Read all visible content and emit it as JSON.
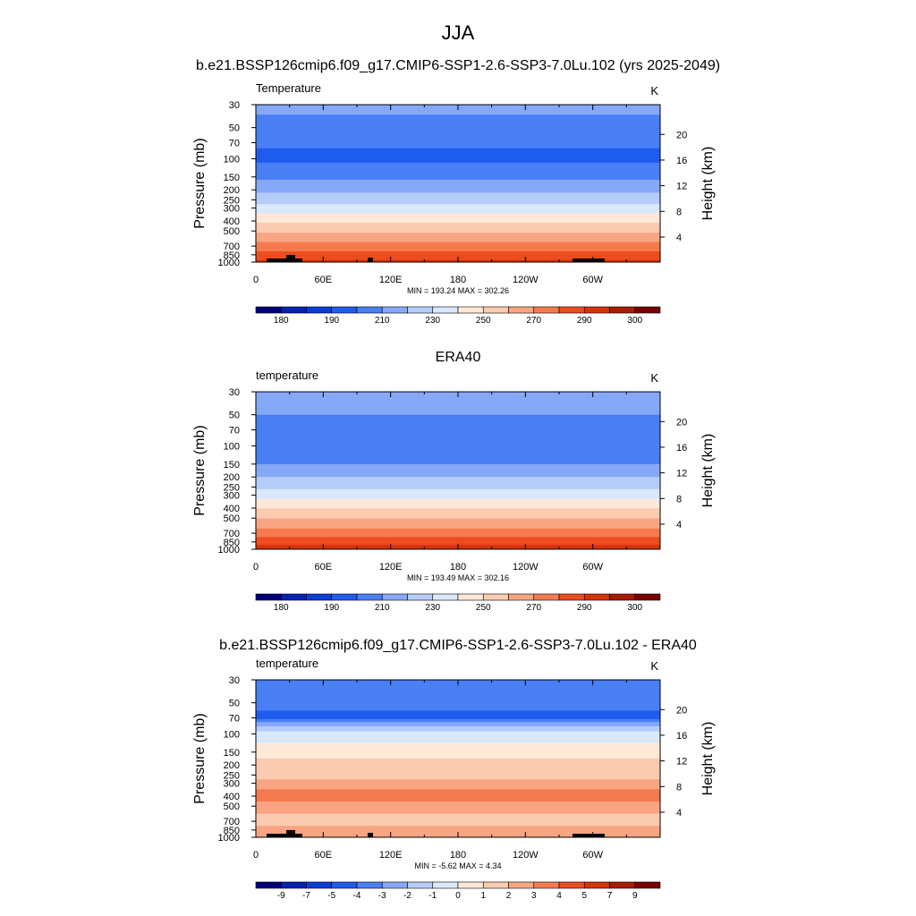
{
  "figure": {
    "title": "JJA",
    "y_left_label": "Pressure (mb)",
    "y_right_label": "Height (km)",
    "pressure_ticks": [
      30,
      50,
      70,
      100,
      150,
      200,
      250,
      300,
      400,
      500,
      700,
      850,
      1000
    ],
    "height_ticks": [
      4,
      8,
      12,
      16,
      20
    ],
    "lon_tick_labels": [
      "0",
      "60E",
      "120E",
      "180",
      "120W",
      "60W"
    ]
  },
  "chart_data": [
    {
      "type": "heatmap",
      "title": "b.e21.BSSP126cmip6.f09_g17.CMIP6-SSP1-2.6-SSP3-7.0Lu.102 (yrs 2025-2049)",
      "left_label": "Temperature",
      "units": "K",
      "min": 193.24,
      "max": 302.26,
      "stats_text": "MIN = 193.24  MAX = 302.26",
      "colorbar_labels": [
        "180",
        "190",
        "210",
        "230",
        "250",
        "270",
        "290",
        "300"
      ],
      "ylim_pressure_mb": [
        1000,
        30
      ],
      "xlim_lon_deg": [
        0,
        360
      ],
      "profile_K": [
        {
          "p": 30,
          "t": 213
        },
        {
          "p": 50,
          "t": 206
        },
        {
          "p": 70,
          "t": 201
        },
        {
          "p": 100,
          "t": 198
        },
        {
          "p": 150,
          "t": 208
        },
        {
          "p": 200,
          "t": 218
        },
        {
          "p": 250,
          "t": 226
        },
        {
          "p": 300,
          "t": 234
        },
        {
          "p": 400,
          "t": 248
        },
        {
          "p": 500,
          "t": 258
        },
        {
          "p": 700,
          "t": 274
        },
        {
          "p": 850,
          "t": 284
        },
        {
          "p": 1000,
          "t": 293
        }
      ]
    },
    {
      "type": "heatmap",
      "title": "ERA40",
      "left_label": "temperature",
      "units": "K",
      "min": 193.49,
      "max": 302.16,
      "stats_text": "MIN = 193.49  MAX = 302.16",
      "colorbar_labels": [
        "180",
        "190",
        "210",
        "230",
        "250",
        "270",
        "290",
        "300"
      ],
      "ylim_pressure_mb": [
        1000,
        30
      ],
      "xlim_lon_deg": [
        0,
        360
      ],
      "profile_K": [
        {
          "p": 30,
          "t": 214
        },
        {
          "p": 50,
          "t": 210
        },
        {
          "p": 70,
          "t": 205
        },
        {
          "p": 100,
          "t": 200
        },
        {
          "p": 150,
          "t": 210
        },
        {
          "p": 200,
          "t": 220
        },
        {
          "p": 250,
          "t": 228
        },
        {
          "p": 300,
          "t": 236
        },
        {
          "p": 400,
          "t": 250
        },
        {
          "p": 500,
          "t": 260
        },
        {
          "p": 700,
          "t": 275
        },
        {
          "p": 850,
          "t": 286
        },
        {
          "p": 1000,
          "t": 295
        }
      ]
    },
    {
      "type": "heatmap",
      "title": "b.e21.BSSP126cmip6.f09_g17.CMIP6-SSP1-2.6-SSP3-7.0Lu.102 - ERA40",
      "left_label": "temperature",
      "units": "K",
      "min": -5.62,
      "max": 4.34,
      "stats_text": "MIN =  -5.62  MAX =   4.34",
      "colorbar_labels": [
        "-9",
        "-7",
        "-5",
        "-4",
        "-3",
        "-2",
        "-1",
        "0",
        "1",
        "2",
        "3",
        "4",
        "5",
        "7",
        "9"
      ],
      "ylim_pressure_mb": [
        1000,
        30
      ],
      "xlim_lon_deg": [
        0,
        360
      ],
      "profile_K": [
        {
          "p": 30,
          "t": -3.5
        },
        {
          "p": 50,
          "t": -3.5
        },
        {
          "p": 70,
          "t": -4.5
        },
        {
          "p": 80,
          "t": -2.5
        },
        {
          "p": 100,
          "t": -0.5
        },
        {
          "p": 150,
          "t": 0.5
        },
        {
          "p": 200,
          "t": 1.5
        },
        {
          "p": 250,
          "t": 1.5
        },
        {
          "p": 300,
          "t": 2.5
        },
        {
          "p": 400,
          "t": 3.5
        },
        {
          "p": 500,
          "t": 2.5
        },
        {
          "p": 700,
          "t": 1.5
        },
        {
          "p": 850,
          "t": 2.5
        },
        {
          "p": 1000,
          "t": 2.5
        }
      ]
    }
  ],
  "colors": {
    "abs_levels": [
      180,
      185,
      190,
      200,
      210,
      220,
      230,
      240,
      250,
      260,
      270,
      280,
      290,
      295,
      300
    ],
    "abs_palette": [
      "#00007a",
      "#0722b0",
      "#0b3dd6",
      "#1f5cf0",
      "#4a7ff5",
      "#86a9f7",
      "#b5cdf8",
      "#d9e8fb",
      "#fde8d8",
      "#fbcbb0",
      "#f8a582",
      "#f47a4f",
      "#ec4d1e",
      "#d43406",
      "#a81c04",
      "#7a0000"
    ],
    "diff_levels": [
      -9,
      -7,
      -5,
      -4,
      -3,
      -2,
      -1,
      0,
      1,
      2,
      3,
      4,
      5,
      7,
      9
    ],
    "diff_palette": [
      "#00007a",
      "#0722b0",
      "#0b3dd6",
      "#1f5cf0",
      "#4a7ff5",
      "#86a9f7",
      "#b5cdf8",
      "#d9e8fb",
      "#fde8d8",
      "#fbcbb0",
      "#f8a582",
      "#f47a4f",
      "#ec4d1e",
      "#d43406",
      "#a81c04",
      "#7a0000"
    ]
  }
}
